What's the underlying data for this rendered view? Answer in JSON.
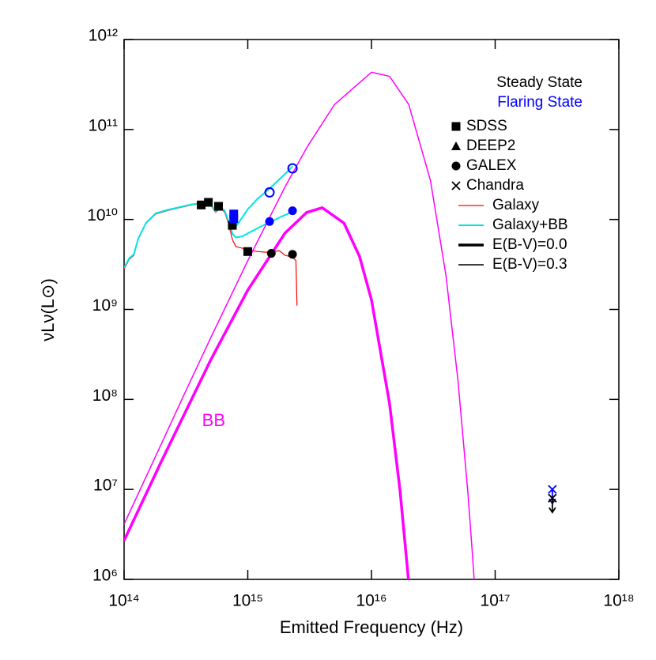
{
  "chart_data": {
    "type": "line",
    "xlabel": "Emitted Frequency (Hz)",
    "ylabel": "νLν(L⊙)",
    "log_x": true,
    "log_y": true,
    "xlim": [
      100000000000000.0,
      1e+18
    ],
    "ylim": [
      1000000.0,
      1000000000000.0
    ],
    "xticks": [
      {
        "value": 100000000000000.0,
        "label": "10¹⁴"
      },
      {
        "value": 1000000000000000.0,
        "label": "10¹⁵"
      },
      {
        "value": 1e+16,
        "label": "10¹⁶"
      },
      {
        "value": 1e+17,
        "label": "10¹⁷"
      },
      {
        "value": 1e+18,
        "label": "10¹⁸"
      }
    ],
    "yticks": [
      {
        "value": 1000000.0,
        "label": "10⁶"
      },
      {
        "value": 10000000.0,
        "label": "10⁷"
      },
      {
        "value": 100000000.0,
        "label": "10⁸"
      },
      {
        "value": 1000000000.0,
        "label": "10⁹"
      },
      {
        "value": 10000000000.0,
        "label": "10¹⁰"
      },
      {
        "value": 100000000000.0,
        "label": "10¹¹"
      },
      {
        "value": 1000000000000.0,
        "label": "10¹²"
      }
    ],
    "state_labels": [
      {
        "text": "Steady State",
        "color": "#000000"
      },
      {
        "text": "Flaring State",
        "color": "#0000ff"
      }
    ],
    "marker_legend": [
      {
        "name": "SDSS",
        "marker": "square"
      },
      {
        "name": "DEEP2",
        "marker": "triangle"
      },
      {
        "name": "GALEX",
        "marker": "circle"
      },
      {
        "name": "Chandra",
        "marker": "x"
      }
    ],
    "annotations": [
      {
        "text": "BB",
        "x": 530000000000000.0,
        "y": 57000000.0,
        "color": "#ff00ff"
      }
    ],
    "series": [
      {
        "name": "Galaxy",
        "color": "#ff0000",
        "width": 1.2,
        "x": [
          100000000000000.0,
          110000000000000.0,
          120000000000000.0,
          130000000000000.0,
          150000000000000.0,
          180000000000000.0,
          220000000000000.0,
          280000000000000.0,
          350000000000000.0,
          420000000000000.0,
          500000000000000.0,
          550000000000000.0,
          600000000000000.0,
          650000000000000.0,
          700000000000000.0,
          750000000000000.0,
          800000000000000.0,
          900000000000000.0,
          1000000000000000.0,
          1200000000000000.0,
          1500000000000000.0,
          1800000000000000.0,
          2000000000000000.0,
          2300000000000000.0,
          2450000000000000.0,
          2500000000000000.0
        ],
        "values": [
          2800000000.0,
          3600000000.0,
          4000000000.0,
          6000000000.0,
          9000000000.0,
          11500000000.0,
          12500000000.0,
          13500000000.0,
          14500000000.0,
          15000000000.0,
          14500000000.0,
          12000000000.0,
          13500000000.0,
          12000000000.0,
          9000000000.0,
          6000000000.0,
          5000000000.0,
          4800000000.0,
          4600000000.0,
          4400000000.0,
          4300000000.0,
          4500000000.0,
          4000000000.0,
          3800000000.0,
          3500000000.0,
          1100000000.0
        ]
      },
      {
        "name": "Galaxy+BB",
        "color": "#00e5e5",
        "width": 2,
        "x": [
          100000000000000.0,
          110000000000000.0,
          120000000000000.0,
          130000000000000.0,
          150000000000000.0,
          180000000000000.0,
          220000000000000.0,
          280000000000000.0,
          350000000000000.0,
          420000000000000.0,
          500000000000000.0,
          550000000000000.0,
          600000000000000.0,
          650000000000000.0,
          700000000000000.0,
          750000000000000.0,
          800000000000000.0,
          900000000000000.0,
          1000000000000000.0,
          1200000000000000.0,
          1500000000000000.0,
          1800000000000000.0,
          2000000000000000.0,
          2300000000000000.0
        ],
        "values": [
          2900000000.0,
          3700000000.0,
          4100000000.0,
          6100000000.0,
          9100000000.0,
          11700000000.0,
          12700000000.0,
          13700000000.0,
          14700000000.0,
          15200000000.0,
          14700000000.0,
          12300000000.0,
          13800000000.0,
          12500000000.0,
          9500000000.0,
          7000000000.0,
          6300000000.0,
          6500000000.0,
          7000000000.0,
          8000000000.0,
          9300000000.0,
          10500000000.0,
          11200000000.0,
          12200000000.0
        ]
      },
      {
        "color": "#00e5e5",
        "width": 2,
        "x": [
          700000000000000.0,
          750000000000000.0,
          800000000000000.0,
          900000000000000.0,
          1000000000000000.0,
          1200000000000000.0,
          1500000000000000.0,
          1800000000000000.0,
          2000000000000000.0,
          2300000000000000.0
        ],
        "values": [
          9500000000.0,
          8000000000.0,
          8300000000.0,
          10500000000.0,
          13000000000.0,
          17000000000.0,
          22000000000.0,
          28000000000.0,
          32000000000.0,
          39000000000.0
        ]
      },
      {
        "name": "E(B-V)=0.0",
        "color": "#ff00ff",
        "legend_color": "#000000",
        "width": 3.5,
        "x": [
          100000000000000.0,
          200000000000000.0,
          500000000000000.0,
          1000000000000000.0,
          2000000000000000.0,
          3000000000000000.0,
          4000000000000000.0,
          6000000000000000.0,
          8000000000000000.0,
          1e+16,
          1.4e+16,
          1.7e+16,
          2e+16
        ],
        "values": [
          2700000.0,
          20400000.0,
          272000000.0,
          1640000000.0,
          7060000000.0,
          12000000000.0,
          13500000000.0,
          9100000000.0,
          3900000000.0,
          1280000000.0,
          90000000.0,
          9800000.0,
          930000.0
        ]
      },
      {
        "name": "E(B-V)=0.3",
        "color": "#ff00ff",
        "legend_color": "#000000",
        "width": 1.5,
        "x": [
          100000000000000.0,
          200000000000000.0,
          300000000000000.0,
          500000000000000.0,
          1000000000000000.0,
          2000000000000000.0,
          3000000000000000.0,
          5000000000000000.0,
          1e+16,
          1.4e+16,
          2e+16,
          3e+16,
          4e+16,
          5e+16,
          6e+16,
          6.5e+16,
          6.8e+16
        ],
        "values": [
          4100000.0,
          32000000.0,
          107000000.0,
          480000000.0,
          3480000000.0,
          23000000000.0,
          63000000000.0,
          188000000000.0,
          433000000000.0,
          390000000000.0,
          190000000000.0,
          27000000000.0,
          2400000000.0,
          164000000.0,
          9700000.0,
          2200000.0,
          890000.0
        ]
      }
    ],
    "points": [
      {
        "marker": "square",
        "color": "#000000",
        "x": [
          420000000000000.0,
          480000000000000.0,
          580000000000000.0,
          750000000000000.0,
          1000000000000000.0
        ],
        "values": [
          14500000000.0,
          15500000000.0,
          14000000000.0,
          8600000000.0,
          4400000000.0
        ]
      },
      {
        "marker": "square",
        "color": "#0000ff",
        "x": [
          770000000000000.0,
          770000000000000.0
        ],
        "values": [
          11500000000.0,
          10200000000.0
        ]
      },
      {
        "marker": "circle",
        "color": "#000000",
        "x": [
          1550000000000000.0,
          2300000000000000.0
        ],
        "values": [
          4200000000.0,
          4100000000.0
        ]
      },
      {
        "marker": "circle",
        "color": "#0000ff",
        "x": [
          1500000000000000.0,
          2300000000000000.0
        ],
        "values": [
          9500000000.0,
          12500000000.0
        ]
      },
      {
        "marker": "open-circle",
        "color": "#0000ff",
        "x": [
          1500000000000000.0,
          2300000000000000.0
        ],
        "values": [
          20000000000.0,
          37000000000.0
        ]
      },
      {
        "marker": "x",
        "color": "#0000ff",
        "upper_limit": true,
        "x": [
          2.9e+17
        ],
        "values": [
          10000000.0
        ]
      },
      {
        "marker": "x",
        "color": "#000000",
        "upper_limit": true,
        "x": [
          2.9e+17
        ],
        "values": [
          8000000.0
        ]
      }
    ]
  }
}
